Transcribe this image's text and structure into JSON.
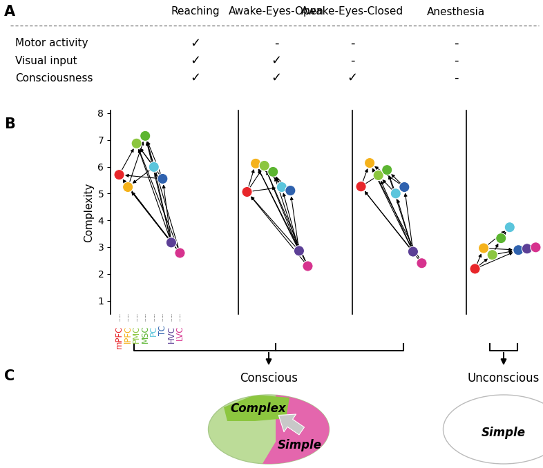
{
  "panel_labels": [
    "A",
    "B",
    "C"
  ],
  "table": {
    "columns": [
      "Reaching",
      "Awake-Eyes-Open",
      "Awake-Eyes-Closed",
      "Anesthesia"
    ],
    "rows": [
      {
        "label": "Motor activity",
        "cells": [
          "✓",
          "-",
          "-",
          "-"
        ]
      },
      {
        "label": "Visual input",
        "cells": [
          "✓",
          "✓",
          "-",
          "-"
        ]
      },
      {
        "label": "Consciousness",
        "cells": [
          "✓",
          "✓",
          "✓",
          "-"
        ]
      }
    ]
  },
  "chart_data": [
    {
      "type": "scatter",
      "ylabel": "Complexity",
      "categories": [
        "mPFC",
        "lPFC",
        "PMC",
        "MSC",
        "PC",
        "TC",
        "HVC",
        "LVC"
      ],
      "colors": [
        "#e8262a",
        "#f5b21b",
        "#8cc63f",
        "#5cb531",
        "#5bc5dc",
        "#2f62ae",
        "#5c3f96",
        "#d6338e"
      ],
      "values": [
        5.7,
        5.24,
        6.87,
        7.15,
        5.99,
        5.55,
        3.17,
        2.78
      ],
      "edges": [
        [
          "LVC",
          "mPFC"
        ],
        [
          "LVC",
          "lPFC"
        ],
        [
          "LVC",
          "PMC"
        ],
        [
          "LVC",
          "MSC"
        ],
        [
          "HVC",
          "mPFC"
        ],
        [
          "HVC",
          "lPFC"
        ],
        [
          "HVC",
          "PMC"
        ],
        [
          "HVC",
          "MSC"
        ],
        [
          "HVC",
          "PC"
        ],
        [
          "HVC",
          "TC"
        ],
        [
          "TC",
          "mPFC"
        ],
        [
          "TC",
          "PMC"
        ],
        [
          "TC",
          "MSC"
        ],
        [
          "PC",
          "PMC"
        ],
        [
          "PC",
          "MSC"
        ],
        [
          "PC",
          "lPFC"
        ],
        [
          "mPFC",
          "PMC"
        ],
        [
          "lPFC",
          "MSC"
        ]
      ],
      "ylim": [
        0.5,
        8.1
      ],
      "yticks": [
        1,
        2,
        3,
        4,
        5,
        6,
        7,
        8
      ]
    },
    {
      "type": "scatter",
      "categories": [
        "mPFC",
        "lPFC",
        "PMC",
        "MSC",
        "PC",
        "TC",
        "HVC",
        "LVC"
      ],
      "colors": [
        "#e8262a",
        "#f5b21b",
        "#8cc63f",
        "#5cb531",
        "#5bc5dc",
        "#2f62ae",
        "#5c3f96",
        "#d6338e"
      ],
      "values": [
        5.06,
        6.12,
        6.04,
        5.81,
        5.24,
        5.11,
        2.86,
        2.29
      ],
      "edges": [
        [
          "LVC",
          "mPFC"
        ],
        [
          "LVC",
          "lPFC"
        ],
        [
          "LVC",
          "PMC"
        ],
        [
          "HVC",
          "mPFC"
        ],
        [
          "HVC",
          "lPFC"
        ],
        [
          "HVC",
          "PMC"
        ],
        [
          "HVC",
          "MSC"
        ],
        [
          "HVC",
          "PC"
        ],
        [
          "HVC",
          "TC"
        ],
        [
          "TC",
          "lPFC"
        ],
        [
          "TC",
          "PMC"
        ],
        [
          "PC",
          "PMC"
        ],
        [
          "PC",
          "MSC"
        ],
        [
          "mPFC",
          "lPFC"
        ],
        [
          "mPFC",
          "PMC"
        ],
        [
          "mPFC",
          "PC"
        ]
      ],
      "ylim": [
        0.5,
        8.1
      ],
      "tick_labels": false
    },
    {
      "type": "scatter",
      "categories": [
        "mPFC",
        "lPFC",
        "PMC",
        "MSC",
        "PC",
        "TC",
        "HVC",
        "LVC"
      ],
      "colors": [
        "#e8262a",
        "#f5b21b",
        "#8cc63f",
        "#5cb531",
        "#5bc5dc",
        "#2f62ae",
        "#5c3f96",
        "#d6338e"
      ],
      "values": [
        5.26,
        6.14,
        5.68,
        5.88,
        5.0,
        5.24,
        2.83,
        2.4
      ],
      "edges": [
        [
          "LVC",
          "mPFC"
        ],
        [
          "LVC",
          "lPFC"
        ],
        [
          "HVC",
          "mPFC"
        ],
        [
          "HVC",
          "lPFC"
        ],
        [
          "HVC",
          "PMC"
        ],
        [
          "HVC",
          "MSC"
        ],
        [
          "HVC",
          "PC"
        ],
        [
          "HVC",
          "TC"
        ],
        [
          "TC",
          "lPFC"
        ],
        [
          "TC",
          "MSC"
        ],
        [
          "PC",
          "PMC"
        ],
        [
          "PC",
          "MSC"
        ],
        [
          "mPFC",
          "lPFC"
        ],
        [
          "mPFC",
          "MSC"
        ]
      ],
      "ylim": [
        0.5,
        8.1
      ],
      "tick_labels": false
    },
    {
      "type": "scatter",
      "categories": [
        "mPFC",
        "lPFC",
        "PMC",
        "MSC",
        "PC",
        "TC",
        "HVC",
        "LVC"
      ],
      "colors": [
        "#e8262a",
        "#f5b21b",
        "#8cc63f",
        "#5cb531",
        "#5bc5dc",
        "#2f62ae",
        "#5c3f96",
        "#d6338e"
      ],
      "values": [
        2.19,
        2.96,
        2.71,
        3.33,
        3.74,
        2.89,
        2.94,
        2.99
      ],
      "edges": [
        [
          "mPFC",
          "lPFC"
        ],
        [
          "mPFC",
          "PMC"
        ],
        [
          "mPFC",
          "TC"
        ],
        [
          "lPFC",
          "PC"
        ],
        [
          "lPFC",
          "TC"
        ],
        [
          "PMC",
          "MSC"
        ],
        [
          "PMC",
          "TC"
        ],
        [
          "MSC",
          "PC"
        ],
        [
          "TC",
          "HVC"
        ],
        [
          "HVC",
          "LVC"
        ]
      ],
      "ylim": [
        0.5,
        8.1
      ],
      "tick_labels": false
    }
  ],
  "summary": {
    "groups": [
      {
        "label": "Conscious",
        "panels": [
          "Reaching",
          "Awake-Eyes-Open",
          "Awake-Eyes-Closed"
        ],
        "regions": [
          "Complex",
          "Simple"
        ]
      },
      {
        "label": "Unconscious",
        "panels": [
          "Anesthesia"
        ],
        "regions": [
          "Simple"
        ]
      }
    ]
  }
}
